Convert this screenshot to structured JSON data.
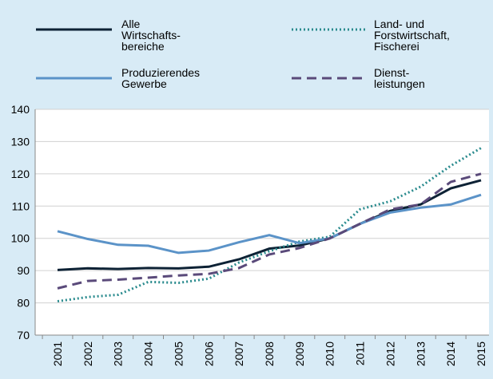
{
  "chart_data": {
    "type": "line",
    "categories": [
      "2001",
      "2002",
      "2003",
      "2004",
      "2005",
      "2006",
      "2007",
      "2008",
      "2009",
      "2010",
      "2011",
      "2012",
      "2013",
      "2014",
      "2015"
    ],
    "series": [
      {
        "name": "Alle\nWirtschafts-\nbereiche",
        "color": "#0d2235",
        "style": "solid",
        "values": [
          90.2,
          90.7,
          90.5,
          90.8,
          90.7,
          91.2,
          93.5,
          96.8,
          97.8,
          100,
          104.5,
          108.5,
          110.5,
          115.5,
          118
        ]
      },
      {
        "name": "Land- und\nForstwirtschaft,\nFischerei",
        "color": "#2a8b8e",
        "style": "dotted",
        "values": [
          80.5,
          81.8,
          82.5,
          86.5,
          86.2,
          87.5,
          92.5,
          96,
          99,
          100.5,
          109,
          111.5,
          116,
          122.5,
          128
        ]
      },
      {
        "name": "Produzierendes\nGewerbe",
        "color": "#5b93c8",
        "style": "solid",
        "values": [
          102.2,
          99.8,
          98,
          97.7,
          95.5,
          96.2,
          98.8,
          101,
          98.5,
          100,
          104.5,
          108,
          109.5,
          110.5,
          113.5
        ]
      },
      {
        "name": "Dienst-\nleistungen",
        "color": "#5a4a7a",
        "style": "dashed",
        "values": [
          84.5,
          86.8,
          87.2,
          87.8,
          88.5,
          89,
          90.8,
          95,
          97,
          100,
          104.5,
          109,
          110.5,
          117.5,
          120
        ]
      }
    ],
    "ylim": [
      70,
      140
    ],
    "yticks": [
      70,
      80,
      90,
      100,
      110,
      120,
      130,
      140
    ],
    "grid": true
  }
}
